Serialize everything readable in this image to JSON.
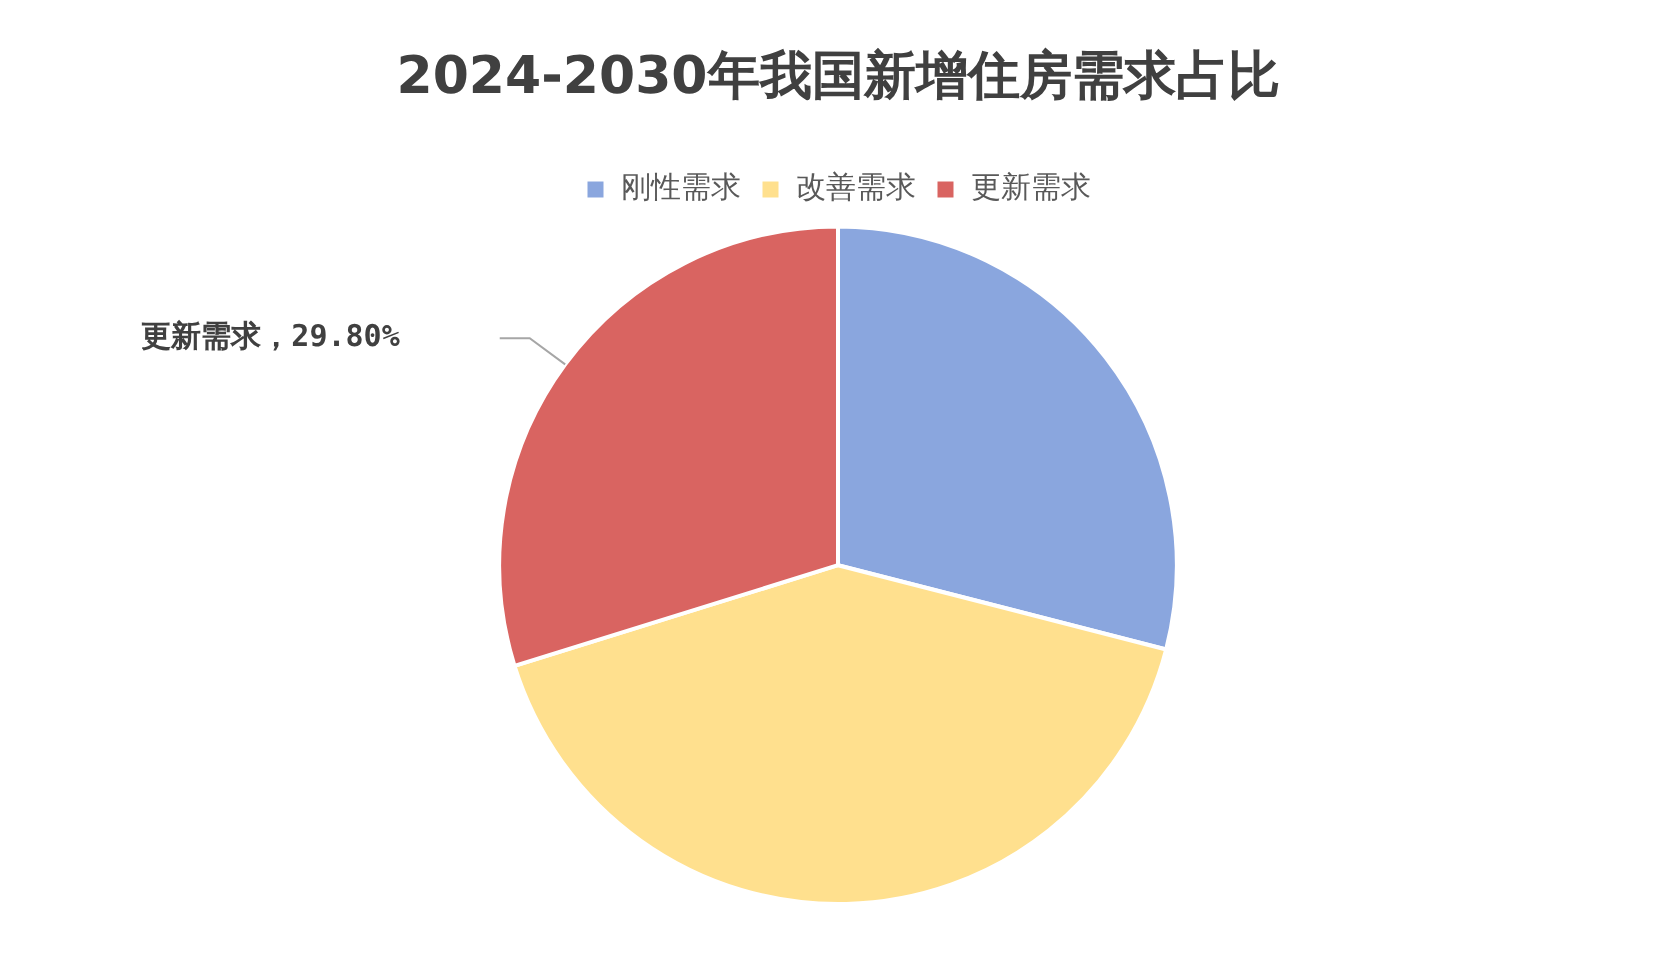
{
  "chart_data": {
    "type": "pie",
    "title": "2024-2030年我国新增住房需求占比",
    "categories": [
      "刚性需求",
      "改善需求",
      "更新需求"
    ],
    "values": [
      29.0,
      41.2,
      29.8
    ],
    "colors": [
      "#8aa6de",
      "#ffe08e",
      "#d96461"
    ],
    "value_labels": [
      null,
      null,
      "更新需求，29.80%"
    ],
    "legend": "top"
  }
}
